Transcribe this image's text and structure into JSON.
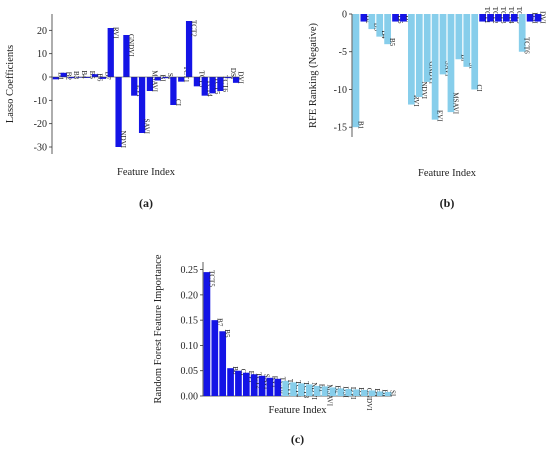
{
  "chart_data": [
    {
      "type": "bar",
      "caption": "(a)",
      "xlabel": "Feature Index",
      "ylabel": "Lasso Coefficients",
      "ylim": [
        -33,
        27
      ],
      "yticks": [
        20,
        10,
        0,
        -10,
        -20,
        -30
      ],
      "grid": false,
      "colors": {
        "bar": "#1414e6"
      },
      "categories": [
        "B1",
        "B2",
        "B3",
        "B4",
        "B5",
        "B6",
        "B7",
        "RVI",
        "NDVI",
        "GNDVI",
        "EVI",
        "SAVI",
        "MSAVI",
        "BI",
        "SI",
        "CI",
        "TCT1",
        "TCT2",
        "TCT3",
        "TCT4",
        "TCT5",
        "TCT6",
        "DSI",
        "DVI"
      ],
      "values": [
        -1,
        1.8,
        -0.5,
        -0.3,
        -0.4,
        1.2,
        -0.8,
        21,
        -30,
        18,
        -8,
        -24,
        -6,
        -1.5,
        -0.5,
        -12,
        -2,
        24,
        -4,
        -8,
        -7,
        -6,
        -0.5,
        -2.5
      ]
    },
    {
      "type": "bar",
      "caption": "(b)",
      "xlabel": "Feature Index",
      "ylabel": "RFE Ranking (Negative)",
      "ylim": [
        -16.3,
        0
      ],
      "yticks": [
        0,
        -5,
        -10,
        -15
      ],
      "grid": false,
      "colors": {
        "light": "#87ceeb",
        "dark": "#1414e6"
      },
      "categories": [
        "B1",
        "B2",
        "B3",
        "B4",
        "B5",
        "B6",
        "B7",
        "RVI",
        "NDVI",
        "GNDVI",
        "EVI",
        "SAVI",
        "MSAVI",
        "BI",
        "SI",
        "CI",
        "TCT1",
        "TCT2",
        "TCT3",
        "TCT4",
        "TCT5",
        "TCT6",
        "DSI",
        "DVI"
      ],
      "values": [
        -15,
        -1,
        -2,
        -3,
        -4,
        -1,
        -1,
        -12,
        -11,
        -9,
        -14,
        -8,
        -13,
        -6,
        -7,
        -10,
        -1,
        -1,
        -1,
        -1,
        -1,
        -5,
        -1,
        -1
      ],
      "highlight": [
        false,
        true,
        false,
        false,
        false,
        true,
        true,
        false,
        false,
        false,
        false,
        false,
        false,
        false,
        false,
        false,
        true,
        true,
        true,
        true,
        true,
        false,
        true,
        true
      ]
    },
    {
      "type": "bar",
      "caption": "(c)",
      "xlabel": "Feature Index",
      "ylabel": "Random Forest Feature Importance",
      "ylim": [
        0,
        0.265
      ],
      "yticks": [
        "0.00",
        "0.05",
        "0.10",
        "0.15",
        "0.20",
        "0.25"
      ],
      "grid": false,
      "colors": {
        "light": "#87ceeb",
        "dark": "#1414e6"
      },
      "categories": [
        "TCT5",
        "B7",
        "B5",
        "B6",
        "CI",
        "EVI",
        "TCT2",
        "SAVI",
        "RVI",
        "TCT6",
        "TCT1",
        "TCT4",
        "TCT3",
        "NDVI",
        "B1",
        "MSAVI",
        "B2",
        "DSI",
        "DVI",
        "B3",
        "GNDVI",
        "B4",
        "BI",
        "SI"
      ],
      "values": [
        0.245,
        0.15,
        0.128,
        0.055,
        0.05,
        0.046,
        0.043,
        0.04,
        0.036,
        0.034,
        0.03,
        0.027,
        0.025,
        0.023,
        0.02,
        0.019,
        0.017,
        0.015,
        0.014,
        0.013,
        0.012,
        0.011,
        0.009,
        0.008
      ],
      "highlight": [
        true,
        true,
        true,
        true,
        true,
        true,
        true,
        true,
        true,
        true,
        false,
        false,
        false,
        false,
        false,
        false,
        false,
        false,
        false,
        false,
        false,
        false,
        false,
        false
      ]
    }
  ]
}
